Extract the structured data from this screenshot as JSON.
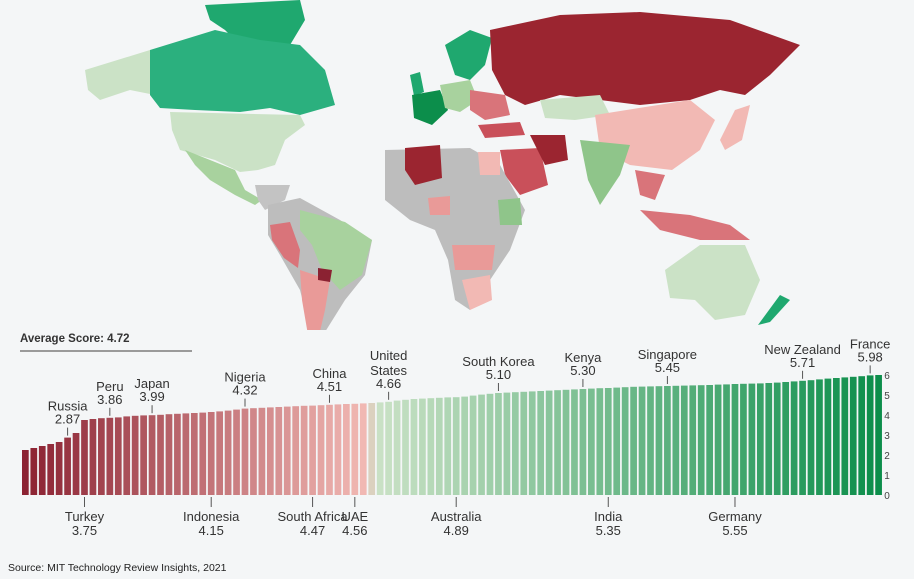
{
  "source": "Source: MIT Technology Review Insights, 2021",
  "average_label": "Average Score: 4.72",
  "scale": {
    "low": "#8b2232",
    "mid_low": "#f2b9b4",
    "mid_high": "#cbe2c6",
    "high": "#0c8e4b"
  },
  "chart_data": {
    "type": "bar",
    "ylim": [
      0,
      6
    ],
    "yticks": [
      0,
      1,
      2,
      3,
      4,
      5,
      6
    ],
    "average": 4.72,
    "values": [
      2.25,
      2.35,
      2.45,
      2.55,
      2.65,
      2.87,
      3.1,
      3.75,
      3.8,
      3.84,
      3.86,
      3.88,
      3.93,
      3.96,
      3.98,
      3.99,
      4.01,
      4.04,
      4.06,
      4.08,
      4.1,
      4.12,
      4.15,
      4.18,
      4.22,
      4.27,
      4.32,
      4.34,
      4.36,
      4.38,
      4.4,
      4.42,
      4.44,
      4.46,
      4.47,
      4.49,
      4.51,
      4.53,
      4.55,
      4.56,
      4.58,
      4.6,
      4.63,
      4.66,
      4.72,
      4.76,
      4.8,
      4.82,
      4.84,
      4.86,
      4.88,
      4.89,
      4.92,
      4.97,
      5.02,
      5.06,
      5.1,
      5.12,
      5.14,
      5.16,
      5.18,
      5.2,
      5.22,
      5.24,
      5.26,
      5.28,
      5.3,
      5.32,
      5.34,
      5.35,
      5.37,
      5.39,
      5.41,
      5.42,
      5.43,
      5.44,
      5.45,
      5.46,
      5.47,
      5.48,
      5.49,
      5.5,
      5.52,
      5.53,
      5.55,
      5.56,
      5.57,
      5.58,
      5.6,
      5.62,
      5.65,
      5.68,
      5.71,
      5.74,
      5.78,
      5.82,
      5.85,
      5.88,
      5.91,
      5.94,
      5.98,
      6.0
    ],
    "labels_above": [
      {
        "country": "Russia",
        "value": "2.87",
        "index": 5
      },
      {
        "country": "Peru",
        "value": "3.86",
        "index": 10
      },
      {
        "country": "Japan",
        "value": "3.99",
        "index": 15
      },
      {
        "country": "Nigeria",
        "value": "4.32",
        "index": 26
      },
      {
        "country": "China",
        "value": "4.51",
        "index": 36
      },
      {
        "country": "United\nStates",
        "value": "4.66",
        "index": 43
      },
      {
        "country": "South Korea",
        "value": "5.10",
        "index": 56
      },
      {
        "country": "Kenya",
        "value": "5.30",
        "index": 66
      },
      {
        "country": "Singapore",
        "value": "5.45",
        "index": 76
      },
      {
        "country": "New Zealand",
        "value": "5.71",
        "index": 92
      },
      {
        "country": "France",
        "value": "5.98",
        "index": 100
      }
    ],
    "labels_below": [
      {
        "country": "Turkey",
        "value": "3.75",
        "index": 7
      },
      {
        "country": "Indonesia",
        "value": "4.15",
        "index": 22
      },
      {
        "country": "South Africa",
        "value": "4.47",
        "index": 34
      },
      {
        "country": "UAE",
        "value": "4.56",
        "index": 39
      },
      {
        "country": "Australia",
        "value": "4.89",
        "index": 51
      },
      {
        "country": "India",
        "value": "5.35",
        "index": 69
      },
      {
        "country": "Germany",
        "value": "5.55",
        "index": 84
      }
    ]
  }
}
